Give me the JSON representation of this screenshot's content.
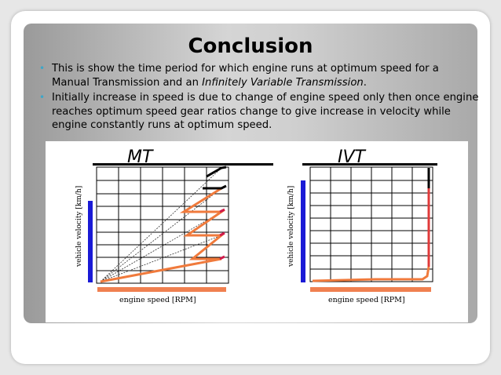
{
  "slide": {
    "title": "Conclusion",
    "bullets": [
      {
        "text_before": "This is show the time period for which engine runs at optimum speed for a Manual Transmission and an ",
        "emphasis": "Infinitely Variable Transmission",
        "text_after": "."
      },
      {
        "text_before": "Initially increase in speed is due to change of engine speed only then once engine reaches optimum speed gear ratios change to give increase in velocity while engine constantly runs at optimum speed.",
        "emphasis": "",
        "text_after": ""
      }
    ]
  },
  "figure": {
    "panels": [
      {
        "title": "MT",
        "ylabel": "vehicle velocity [km/h]",
        "xlabel": "engine speed [RPM]"
      },
      {
        "title": "IVT",
        "ylabel": "vehicle velocity [km/h]",
        "xlabel": "engine speed [RPM]"
      }
    ]
  },
  "colors": {
    "bullet": "#3da6c8",
    "velocity_bar": "#1a1ad6",
    "rpm_bar": "#f08050",
    "curve": "#f07a3c",
    "redline": "#d01a4a"
  }
}
